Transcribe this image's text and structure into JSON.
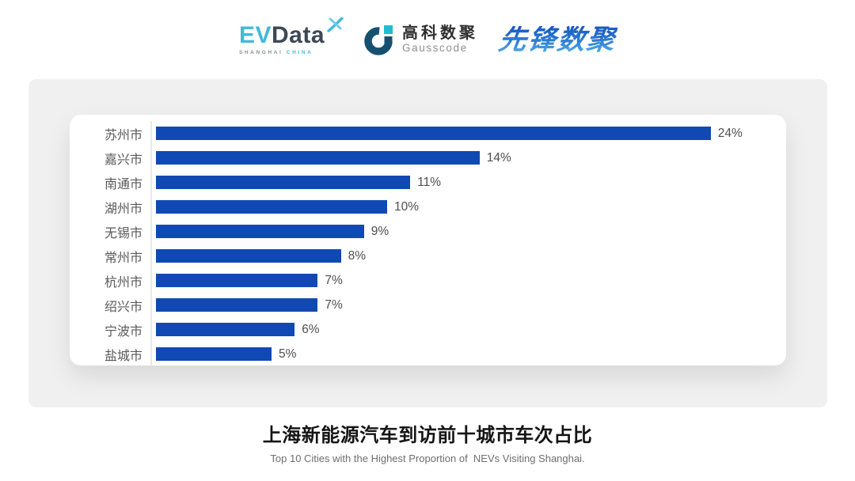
{
  "header": {
    "logos": {
      "evdata": {
        "part_ev": "EV",
        "part_data": "Data",
        "subtext_left": "SHANGHAI",
        "subtext_right": "CHINA",
        "accent_color": "#41b9dd",
        "dark_color": "#3d4856"
      },
      "gausscode": {
        "cn": "高科数聚",
        "en": "Gausscode",
        "icon_dark_color": "#16506e",
        "icon_teal_color": "#1fbdcb"
      },
      "xianfeng": {
        "text": "先锋数聚",
        "gradient_top": "#1556c0",
        "gradient_bottom": "#53aee6"
      }
    }
  },
  "chart_data": {
    "type": "bar",
    "orientation": "horizontal",
    "title": "上海新能源汽车到访前十城市车次占比",
    "subtitle": "Top 10 Cities with the Highest Proportion of  NEVs Visiting Shanghai.",
    "categories": [
      "苏州市",
      "嘉兴市",
      "南通市",
      "湖州市",
      "无锡市",
      "常州市",
      "杭州市",
      "绍兴市",
      "宁波市",
      "盐城市"
    ],
    "values": [
      24,
      14,
      11,
      10,
      9,
      8,
      7,
      7,
      6,
      5
    ],
    "value_labels": [
      "24%",
      "14%",
      "11%",
      "10%",
      "9%",
      "8%",
      "7%",
      "7%",
      "6%",
      "5%"
    ],
    "xlim": [
      0,
      25
    ],
    "bar_color": "#1149b4",
    "category_label_color": "#595959",
    "value_label_color": "#4f4f4f",
    "axis_line_color": "#e7e7e7",
    "grid": false,
    "legend": false,
    "value_label_position": "outside-end"
  }
}
